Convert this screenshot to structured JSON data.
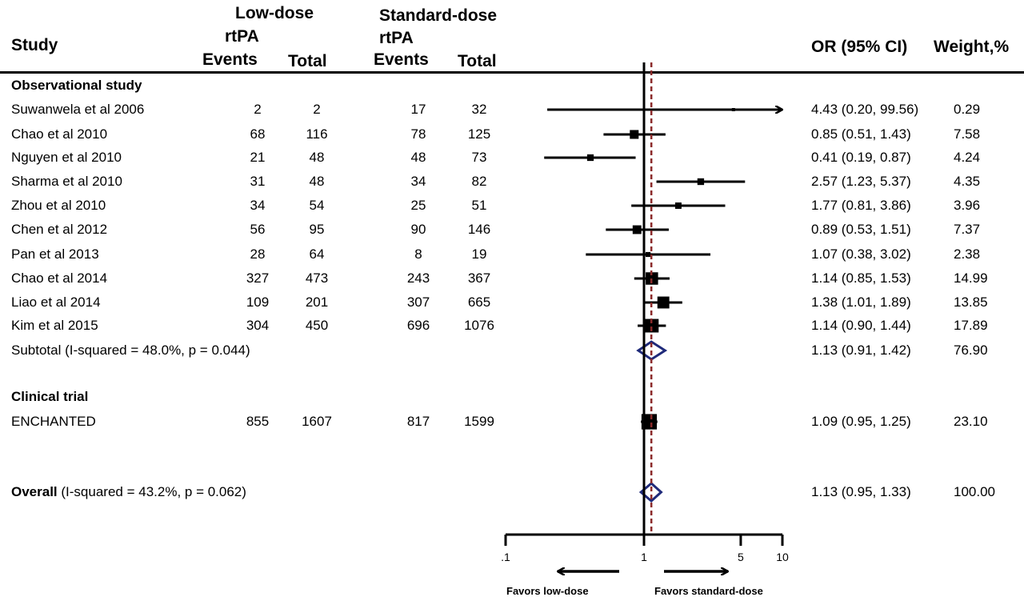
{
  "headers": {
    "study": "Study",
    "low_line1": "Low-dose",
    "low_line2": "rtPA",
    "std_line1": "Standard-dose",
    "std_line2": "rtPA",
    "events": "Events",
    "total": "Total",
    "or": "OR (95% CI)",
    "weight": "Weight,%"
  },
  "footer": {
    "favors_low": "Favors low-dose",
    "favors_std": "Favors standard-dose"
  },
  "colors": {
    "line": "#000000",
    "diamond": "#1f2a7a",
    "reference": "#8b2a2a"
  },
  "chart_data": {
    "type": "forest",
    "xscale": "log",
    "xlim": [
      0.1,
      10
    ],
    "xticks": [
      {
        "value": 0.1,
        "label": ".1"
      },
      {
        "value": 1,
        "label": "1"
      },
      {
        "value": 5,
        "label": "5"
      },
      {
        "value": 10,
        "label": "10"
      }
    ],
    "null_line": 1,
    "overall_effect": 1.13,
    "rows": [
      {
        "kind": "group",
        "label": "Observational study"
      },
      {
        "kind": "study",
        "label": "Suwanwela et al 2006",
        "low_events": "2",
        "low_total": "2",
        "std_events": "17",
        "std_total": "32",
        "or": 4.43,
        "lo": 0.2,
        "hi": 99.56,
        "or_text": "4.43 (0.20, 99.56)",
        "weight": "0.29",
        "arrow_right": true
      },
      {
        "kind": "study",
        "label": "Chao et al 2010",
        "low_events": "68",
        "low_total": "116",
        "std_events": "78",
        "std_total": "125",
        "or": 0.85,
        "lo": 0.51,
        "hi": 1.43,
        "or_text": "0.85 (0.51, 1.43)",
        "weight": "7.58"
      },
      {
        "kind": "study",
        "label": "Nguyen et al 2010",
        "low_events": "21",
        "low_total": "48",
        "std_events": "48",
        "std_total": "73",
        "or": 0.41,
        "lo": 0.19,
        "hi": 0.87,
        "or_text": "0.41 (0.19, 0.87)",
        "weight": "4.24"
      },
      {
        "kind": "study",
        "label": "Sharma et al 2010",
        "low_events": "31",
        "low_total": "48",
        "std_events": "34",
        "std_total": "82",
        "or": 2.57,
        "lo": 1.23,
        "hi": 5.37,
        "or_text": "2.57 (1.23, 5.37)",
        "weight": "4.35"
      },
      {
        "kind": "study",
        "label": "Zhou et al 2010",
        "low_events": "34",
        "low_total": "54",
        "std_events": "25",
        "std_total": "51",
        "or": 1.77,
        "lo": 0.81,
        "hi": 3.86,
        "or_text": "1.77 (0.81, 3.86)",
        "weight": "3.96"
      },
      {
        "kind": "study",
        "label": "Chen et al 2012",
        "low_events": "56",
        "low_total": "95",
        "std_events": "90",
        "std_total": "146",
        "or": 0.89,
        "lo": 0.53,
        "hi": 1.51,
        "or_text": "0.89 (0.53, 1.51)",
        "weight": "7.37"
      },
      {
        "kind": "study",
        "label": "Pan et al 2013",
        "low_events": "28",
        "low_total": "64",
        "std_events": "8",
        "std_total": "19",
        "or": 1.07,
        "lo": 0.38,
        "hi": 3.02,
        "or_text": "1.07 (0.38, 3.02)",
        "weight": "2.38"
      },
      {
        "kind": "study",
        "label": "Chao et al 2014",
        "low_events": "327",
        "low_total": "473",
        "std_events": "243",
        "std_total": "367",
        "or": 1.14,
        "lo": 0.85,
        "hi": 1.53,
        "or_text": "1.14 (0.85, 1.53)",
        "weight": "14.99"
      },
      {
        "kind": "study",
        "label": "Liao et al 2014",
        "low_events": "109",
        "low_total": "201",
        "std_events": "307",
        "std_total": "665",
        "or": 1.38,
        "lo": 1.01,
        "hi": 1.89,
        "or_text": "1.38 (1.01, 1.89)",
        "weight": "13.85"
      },
      {
        "kind": "study",
        "label": "Kim et al 2015",
        "low_events": "304",
        "low_total": "450",
        "std_events": "696",
        "std_total": "1076",
        "or": 1.14,
        "lo": 0.9,
        "hi": 1.44,
        "or_text": "1.14 (0.90, 1.44)",
        "weight": "17.89"
      },
      {
        "kind": "subtotal",
        "label": "Subtotal",
        "het": "(I-squared = 48.0%, p = 0.044)",
        "or": 1.13,
        "lo": 0.91,
        "hi": 1.42,
        "or_text": "1.13 (0.91, 1.42)",
        "weight": "76.90"
      },
      {
        "kind": "group",
        "label": "Clinical trial"
      },
      {
        "kind": "study",
        "label": "ENCHANTED",
        "low_events": "855",
        "low_total": "1607",
        "std_events": "817",
        "std_total": "1599",
        "or": 1.09,
        "lo": 0.95,
        "hi": 1.25,
        "or_text": "1.09 (0.95, 1.25)",
        "weight": "23.10"
      },
      {
        "kind": "overall",
        "label": "Overall",
        "het": "(I-squared = 43.2%, p = 0.062)",
        "or": 1.13,
        "lo": 0.95,
        "hi": 1.33,
        "or_text": "1.13 (0.95, 1.33)",
        "weight": "100.00"
      }
    ]
  }
}
